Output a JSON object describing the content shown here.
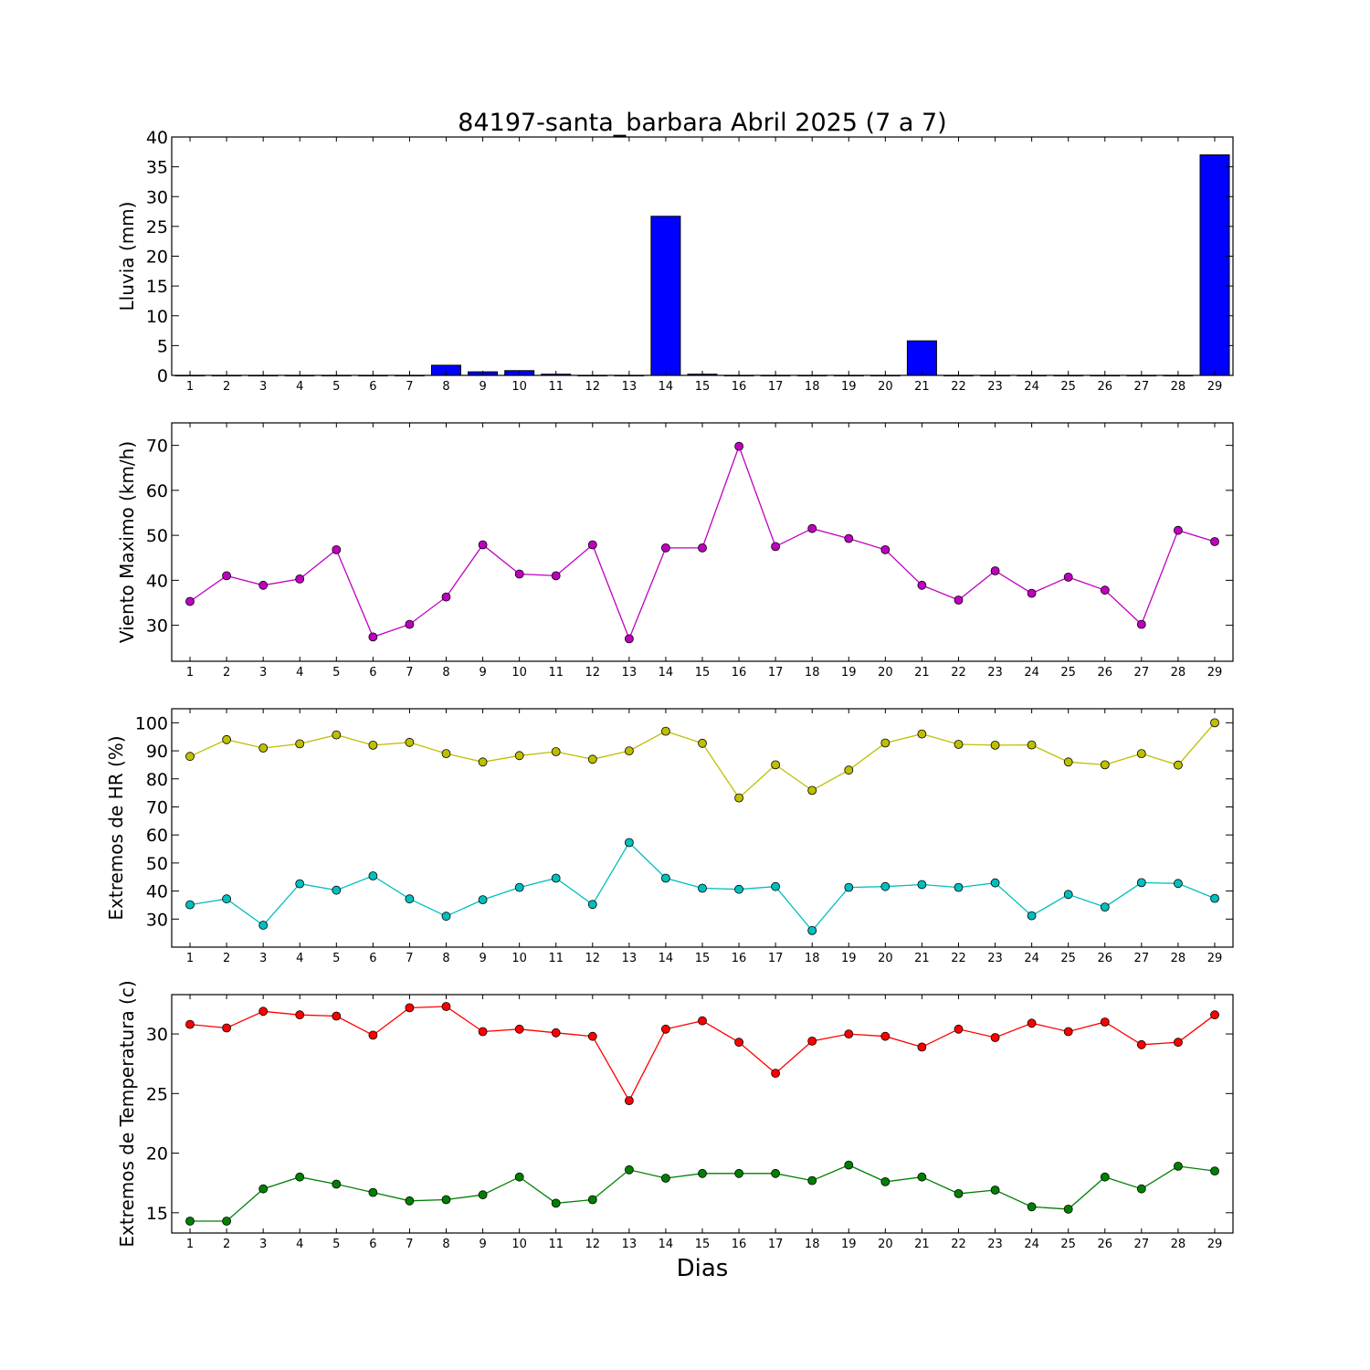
{
  "title": "84197-santa_barbara Abril 2025  (7 a 7)",
  "xlabel": "Dias",
  "chart_data": [
    {
      "type": "bar",
      "ylabel": "Lluvia (mm)",
      "ylim": [
        0,
        40
      ],
      "yticks": [
        0,
        5,
        10,
        15,
        20,
        25,
        30,
        35,
        40
      ],
      "categories": [
        1,
        2,
        3,
        4,
        5,
        6,
        7,
        8,
        9,
        10,
        11,
        12,
        13,
        14,
        15,
        16,
        17,
        18,
        19,
        20,
        21,
        22,
        23,
        24,
        25,
        26,
        27,
        28,
        29
      ],
      "values": [
        0,
        0,
        0,
        0,
        0,
        0,
        0,
        1.7,
        0.6,
        0.8,
        0.2,
        0,
        0,
        26.7,
        0.2,
        0,
        0,
        0,
        0,
        0,
        5.8,
        0,
        0,
        0,
        0,
        0,
        0,
        0,
        37.0
      ],
      "colors": {
        "bar": "#0000ff"
      }
    },
    {
      "type": "line",
      "ylabel": "Viento Maximo (km/h)",
      "ylim": [
        22,
        75
      ],
      "yticks": [
        30,
        40,
        50,
        60,
        70
      ],
      "x": [
        1,
        2,
        3,
        4,
        5,
        6,
        7,
        8,
        9,
        10,
        11,
        12,
        13,
        14,
        15,
        16,
        17,
        18,
        19,
        20,
        21,
        22,
        23,
        24,
        25,
        26,
        27,
        28,
        29
      ],
      "series": [
        {
          "values": [
            35.3,
            41.0,
            38.9,
            40.3,
            46.8,
            27.4,
            30.2,
            36.3,
            47.9,
            41.4,
            41.0,
            47.9,
            27.0,
            47.2,
            47.2,
            69.8,
            47.5,
            51.5,
            49.3,
            46.8,
            38.9,
            35.6,
            42.1,
            37.1,
            40.7,
            37.8,
            30.2,
            51.1,
            48.6
          ],
          "color": "#bf00bf"
        }
      ]
    },
    {
      "type": "line",
      "ylabel": "Extremos de HR (%)",
      "ylim": [
        20,
        105
      ],
      "yticks": [
        30,
        40,
        50,
        60,
        70,
        80,
        90,
        100
      ],
      "x": [
        1,
        2,
        3,
        4,
        5,
        6,
        7,
        8,
        9,
        10,
        11,
        12,
        13,
        14,
        15,
        16,
        17,
        18,
        19,
        20,
        21,
        22,
        23,
        24,
        25,
        26,
        27,
        28,
        29
      ],
      "series": [
        {
          "values": [
            88,
            94,
            91,
            92.5,
            95.7,
            92,
            93,
            89,
            86,
            88.3,
            89.7,
            87,
            90,
            97,
            92.7,
            73.2,
            85,
            75.9,
            83.1,
            92.8,
            96,
            92.3,
            92,
            92.1,
            86,
            85,
            89,
            84.9,
            100
          ],
          "color": "#bfbf00"
        },
        {
          "values": [
            35.1,
            37.2,
            27.8,
            42.6,
            40.3,
            45.4,
            37.2,
            31,
            36.9,
            41.3,
            44.6,
            35.2,
            57.3,
            44.6,
            41,
            40.6,
            41.6,
            25.9,
            41.3,
            41.6,
            42.3,
            41.3,
            42.9,
            31.2,
            38.8,
            34.3,
            43,
            42.7,
            37.4
          ],
          "color": "#00bfbf"
        }
      ]
    },
    {
      "type": "line",
      "ylabel": "Extremos de Temperatura (c)",
      "ylim": [
        13.3,
        33.3
      ],
      "yticks": [
        15,
        20,
        25,
        30
      ],
      "x": [
        1,
        2,
        3,
        4,
        5,
        6,
        7,
        8,
        9,
        10,
        11,
        12,
        13,
        14,
        15,
        16,
        17,
        18,
        19,
        20,
        21,
        22,
        23,
        24,
        25,
        26,
        27,
        28,
        29
      ],
      "series": [
        {
          "values": [
            30.8,
            30.5,
            31.9,
            31.6,
            31.5,
            29.9,
            32.2,
            32.3,
            30.2,
            30.4,
            30.1,
            29.8,
            24.4,
            30.4,
            31.1,
            29.3,
            26.7,
            29.4,
            30.0,
            29.8,
            28.9,
            30.4,
            29.7,
            30.9,
            30.2,
            31.0,
            29.1,
            29.3,
            31.6
          ],
          "color": "#ff0000"
        },
        {
          "values": [
            14.3,
            14.3,
            17.0,
            18.0,
            17.4,
            16.7,
            16.0,
            16.1,
            16.5,
            18.0,
            15.8,
            16.1,
            18.6,
            17.9,
            18.3,
            18.3,
            18.3,
            17.7,
            19.0,
            17.6,
            18.0,
            16.6,
            16.9,
            15.5,
            15.3,
            18.0,
            17.0,
            18.9,
            18.5
          ],
          "color": "#008000"
        }
      ]
    }
  ]
}
